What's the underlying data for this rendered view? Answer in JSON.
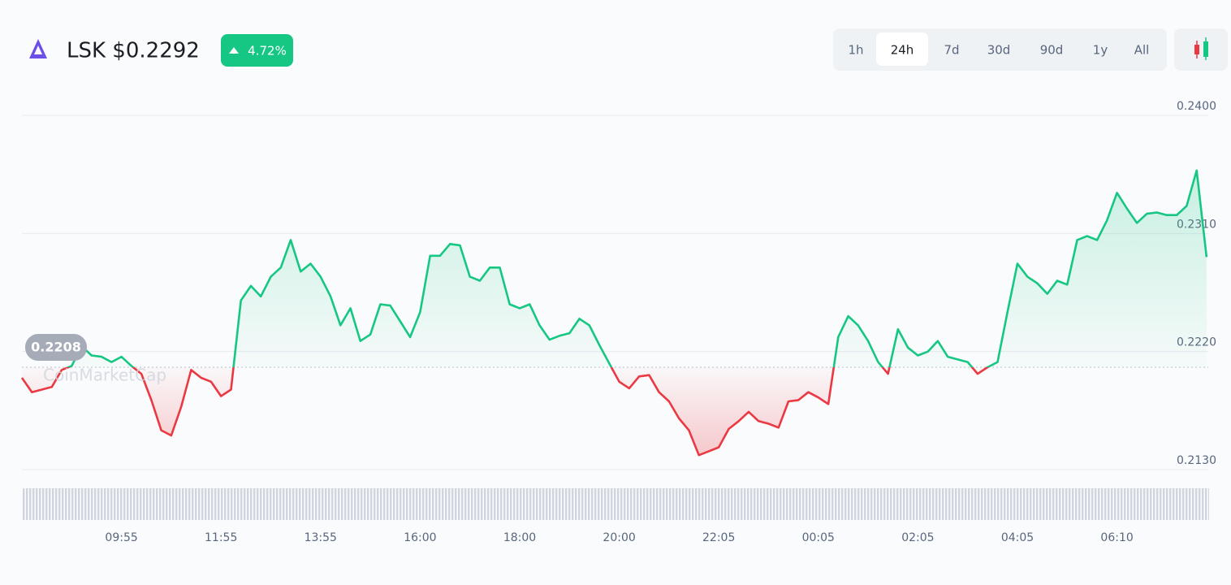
{
  "header": {
    "title": "LSK $0.2292",
    "change": "4.72%",
    "timeframes": [
      "1h",
      "24h",
      "7d",
      "30d",
      "90d",
      "1y",
      "All"
    ],
    "selected": "24h"
  },
  "watermark": "CoinMarketCap",
  "chart_data": {
    "type": "line",
    "categories": [
      null,
      null,
      null,
      null,
      null,
      null,
      null,
      null,
      null,
      null,
      "09:55",
      null,
      null,
      null,
      null,
      null,
      null,
      null,
      null,
      null,
      "11:55",
      null,
      null,
      null,
      null,
      null,
      null,
      null,
      null,
      null,
      "13:55",
      null,
      null,
      null,
      null,
      null,
      null,
      null,
      null,
      null,
      "16:00",
      null,
      null,
      null,
      null,
      null,
      null,
      null,
      null,
      null,
      "18:00",
      null,
      null,
      null,
      null,
      null,
      null,
      null,
      null,
      null,
      "20:00",
      null,
      null,
      null,
      null,
      null,
      null,
      null,
      null,
      null,
      "22:05",
      null,
      null,
      null,
      null,
      null,
      null,
      null,
      null,
      null,
      "00:05",
      null,
      null,
      null,
      null,
      null,
      null,
      null,
      null,
      null,
      "02:05",
      null,
      null,
      null,
      null,
      null,
      null,
      null,
      null,
      null,
      "04:05",
      null,
      null,
      null,
      null,
      null,
      null,
      null,
      null,
      null,
      "06:10",
      null,
      null,
      null,
      null,
      null,
      null,
      null,
      null,
      null
    ],
    "values": [
      0.22,
      0.2189,
      0.2191,
      0.2193,
      0.2206,
      0.2209,
      0.2224,
      0.2217,
      0.2216,
      0.2212,
      0.2216,
      0.2209,
      0.2203,
      0.2183,
      0.216,
      0.2156,
      0.2178,
      0.2206,
      0.22,
      0.2197,
      0.2186,
      0.2191,
      0.2259,
      0.227,
      0.2262,
      0.2277,
      0.2284,
      0.2305,
      0.2281,
      0.2287,
      0.2277,
      0.2262,
      0.224,
      0.2253,
      0.2228,
      0.2233,
      0.2256,
      0.2255,
      0.2243,
      0.2231,
      0.225,
      0.2293,
      0.2293,
      0.2302,
      0.2301,
      0.2277,
      0.2274,
      0.2284,
      0.2284,
      0.2256,
      0.2253,
      0.2256,
      0.224,
      0.2229,
      0.2232,
      0.2234,
      0.2245,
      0.224,
      0.2225,
      0.2211,
      0.2197,
      0.2192,
      0.2201,
      0.2202,
      0.2189,
      0.2182,
      0.2169,
      0.216,
      0.2141,
      0.2144,
      0.2147,
      0.2161,
      0.2167,
      0.2174,
      0.2167,
      0.2165,
      0.2162,
      0.2182,
      0.2183,
      0.2189,
      0.2185,
      0.218,
      0.2231,
      0.2247,
      0.224,
      0.2228,
      0.2212,
      0.2203,
      0.2237,
      0.2223,
      0.2217,
      0.222,
      0.2228,
      0.2216,
      0.2214,
      0.2212,
      0.2203,
      0.2208,
      0.2212,
      0.225,
      0.2287,
      0.2277,
      0.2272,
      0.2264,
      0.2274,
      0.2271,
      0.2305,
      0.2308,
      0.2305,
      0.232,
      0.2341,
      0.2329,
      0.2318,
      0.2325,
      0.2326,
      0.2324,
      0.2324,
      0.2331,
      0.2358,
      0.2292
    ],
    "baseline": 0.2208,
    "up_color": "#16c784",
    "down_color": "#ea3943",
    "ylim": [
      0.213,
      0.24
    ],
    "yticks": [
      {
        "value": 0.213,
        "label": "0.2130"
      },
      {
        "value": 0.222,
        "label": "0.2220"
      },
      {
        "value": 0.231,
        "label": "0.2310"
      },
      {
        "value": 0.24,
        "label": "0.2400"
      }
    ],
    "grid": true
  }
}
